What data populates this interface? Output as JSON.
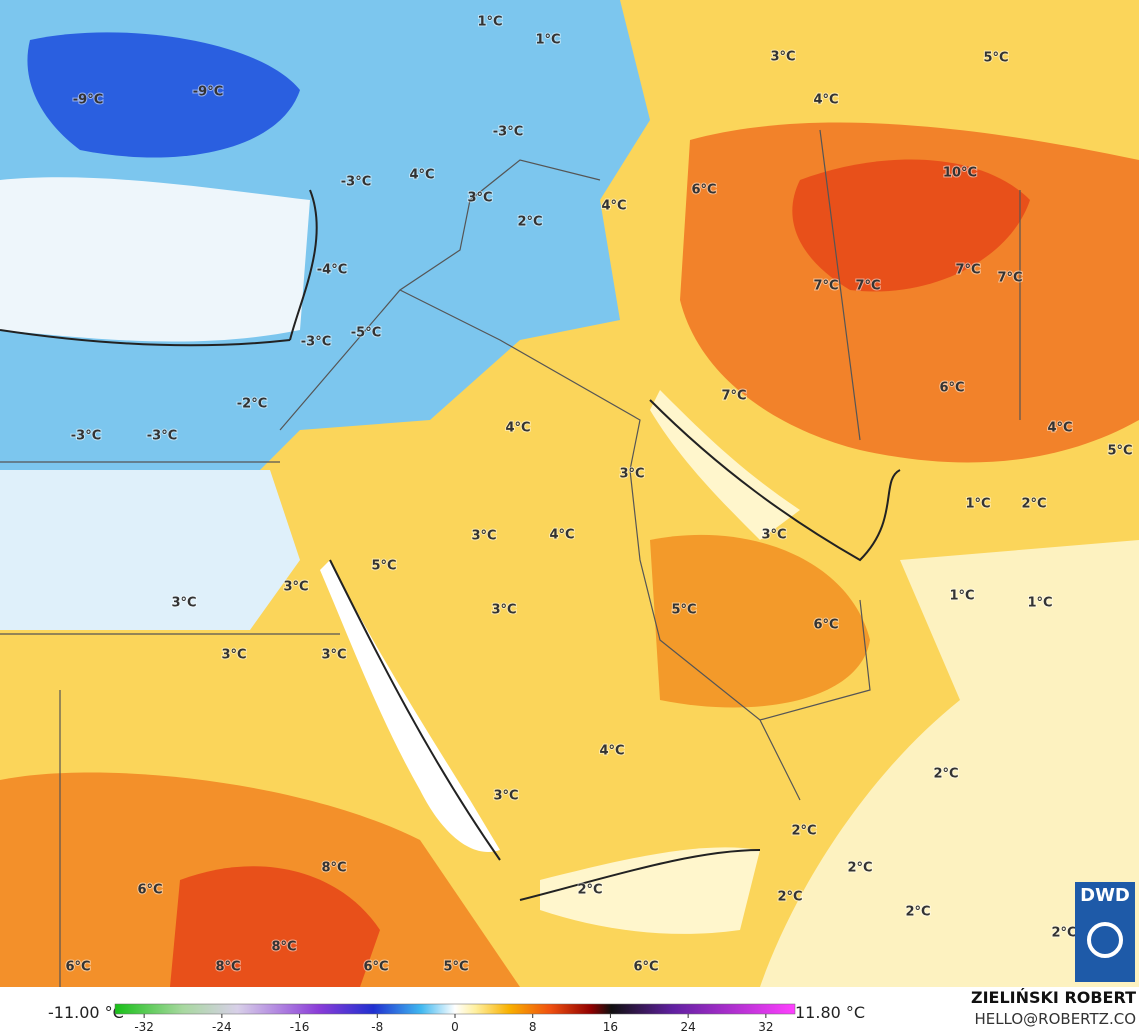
{
  "map": {
    "labels": [
      "-9°C",
      "-9°C",
      "1°C",
      "1°C",
      "-3°C",
      "3°C",
      "4°C",
      "5°C",
      "-3°C",
      "4°C",
      "3°C",
      "2°C",
      "4°C",
      "6°C",
      "10°C",
      "-4°C",
      "-5°C",
      "-3°C",
      "7°C",
      "7°C",
      "7°C",
      "7°C",
      "-2°C",
      "7°C",
      "6°C",
      "-3°C",
      "-3°C",
      "4°C",
      "3°C",
      "4°C",
      "5°C",
      "1°C",
      "2°C",
      "3°C",
      "4°C",
      "3°C",
      "5°C",
      "3°C",
      "3°C",
      "3°C",
      "5°C",
      "6°C",
      "1°C",
      "1°C",
      "3°C",
      "3°C",
      "4°C",
      "2°C",
      "3°C",
      "2°C",
      "8°C",
      "2°C",
      "6°C",
      "2°C",
      "2°C",
      "8°C",
      "2°C",
      "2°C",
      "6°C",
      "8°C",
      "6°C",
      "5°C",
      "6°C"
    ]
  },
  "colorbar": {
    "min_label": "-11.00 °C",
    "max_label": "11.80 °C",
    "clim": [
      -35,
      35
    ],
    "ticks": [
      -32,
      -24,
      -16,
      -8,
      0,
      8,
      16,
      24,
      32
    ]
  },
  "credit": {
    "author": "ZIELIŃSKI ROBERT",
    "email": "HELLO@ROBERTZ.CO",
    "logo": "DWD"
  }
}
